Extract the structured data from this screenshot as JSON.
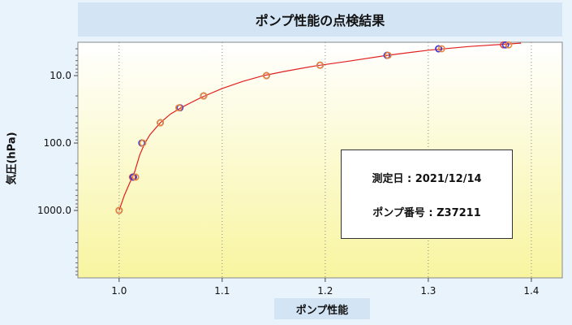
{
  "title": "ポンプ性能の点検結果",
  "chart_data": {
    "type": "scatter",
    "xlabel": "ポンプ性能",
    "ylabel": "気圧(hPa)",
    "xlim": [
      0.96,
      1.43
    ],
    "ylim": [
      10000,
      3.2
    ],
    "y_scale": "log-reversed",
    "x_ticks": [
      1.0,
      1.1,
      1.2,
      1.3,
      1.4
    ],
    "x_tick_labels": [
      "1.0",
      "1.1",
      "1.2",
      "1.3",
      "1.4"
    ],
    "y_ticks": [
      10,
      100,
      1000
    ],
    "y_tick_labels": [
      "10.0",
      "100.0",
      "1000.0"
    ],
    "grid": "dotted-vertical",
    "series": [
      {
        "values": [
          [
            1.0,
            1000
          ],
          [
            1.013,
            320
          ],
          [
            1.022,
            100
          ],
          [
            1.04,
            50
          ],
          [
            1.059,
            30
          ],
          [
            1.082,
            20
          ],
          [
            1.143,
            10
          ],
          [
            1.195,
            7
          ],
          [
            1.26,
            5
          ],
          [
            1.31,
            4
          ],
          [
            1.373,
            3.5
          ]
        ],
        "color": "#e0403a"
      },
      {
        "values": [
          [
            1.0,
            1000
          ],
          [
            1.014,
            320
          ],
          [
            1.022,
            100
          ],
          [
            1.04,
            50
          ],
          [
            1.059,
            30
          ],
          [
            1.082,
            20
          ],
          [
            1.143,
            10
          ],
          [
            1.195,
            7
          ],
          [
            1.26,
            5
          ],
          [
            1.31,
            4
          ],
          [
            1.375,
            3.5
          ]
        ],
        "color": "#3a3ae0"
      },
      {
        "values": [
          [
            1.0,
            1000
          ],
          [
            1.016,
            320
          ],
          [
            1.023,
            100
          ],
          [
            1.04,
            50
          ],
          [
            1.058,
            30
          ],
          [
            1.082,
            20
          ],
          [
            1.143,
            10
          ],
          [
            1.195,
            7
          ],
          [
            1.261,
            5
          ],
          [
            1.313,
            4
          ],
          [
            1.378,
            3.5
          ]
        ],
        "color": "#e88a3a"
      }
    ],
    "fit_line": {
      "x": [
        1.0,
        1.005,
        1.01,
        1.015,
        1.02,
        1.025,
        1.03,
        1.04,
        1.05,
        1.06,
        1.07,
        1.08,
        1.1,
        1.12,
        1.14,
        1.16,
        1.19,
        1.22,
        1.26,
        1.3,
        1.34,
        1.39
      ],
      "y": [
        1000,
        600,
        400,
        270,
        150,
        100,
        75,
        50,
        37,
        30,
        25,
        21,
        15.5,
        12.2,
        10,
        8.7,
        7.2,
        6.2,
        5,
        4.2,
        3.7,
        3.3
      ],
      "color": "#e02020"
    }
  },
  "info": {
    "date_line": "測定日 : 2021/12/14",
    "pump_line": "ポンプ番号 : Z37211"
  }
}
